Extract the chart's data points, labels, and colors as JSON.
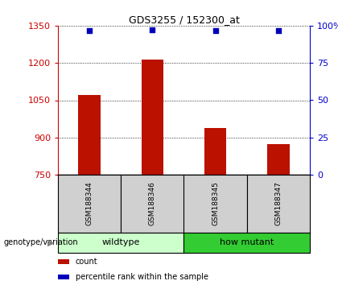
{
  "title": "GDS3255 / 152300_at",
  "samples": [
    "GSM188344",
    "GSM188346",
    "GSM188345",
    "GSM188347"
  ],
  "counts": [
    1072,
    1213,
    937,
    872
  ],
  "percentiles": [
    97,
    97.5,
    97,
    97
  ],
  "ylim_left": [
    750,
    1350
  ],
  "ylim_right": [
    0,
    100
  ],
  "yticks_left": [
    750,
    900,
    1050,
    1200,
    1350
  ],
  "yticks_right": [
    0,
    25,
    50,
    75,
    100
  ],
  "ytick_labels_right": [
    "0",
    "25",
    "50",
    "75",
    "100%"
  ],
  "bar_color": "#bb1100",
  "dot_color": "#0000bb",
  "bar_baseline": 750,
  "groups": [
    {
      "label": "wildtype",
      "indices": [
        0,
        1
      ],
      "color": "#ccffcc"
    },
    {
      "label": "how mutant",
      "indices": [
        2,
        3
      ],
      "color": "#33cc33"
    }
  ],
  "group_label": "genotype/variation",
  "legend_items": [
    {
      "color": "#bb1100",
      "label": "count"
    },
    {
      "color": "#0000bb",
      "label": "percentile rank within the sample"
    }
  ],
  "left_tick_color": "#cc0000",
  "right_tick_color": "#0000cc",
  "fig_width": 4.2,
  "fig_height": 3.54,
  "dpi": 100
}
